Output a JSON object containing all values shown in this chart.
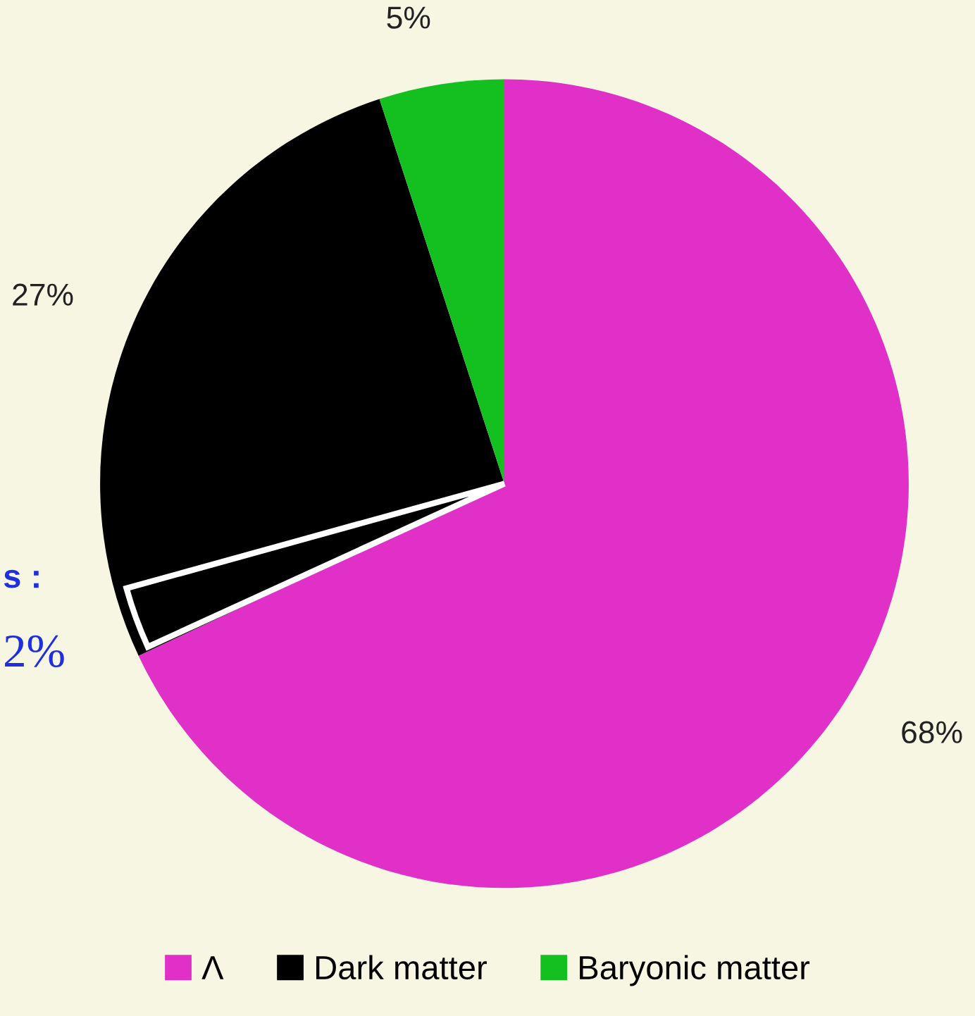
{
  "chart_data": {
    "type": "pie",
    "categories": [
      "Λ",
      "Dark matter",
      "Baryonic matter"
    ],
    "values": [
      68,
      27,
      5
    ],
    "colors": [
      "#e030c8",
      "#000000",
      "#14c020"
    ],
    "value_labels": [
      "68%",
      "27%",
      "5%"
    ],
    "annotations": [
      "s :",
      "2%"
    ],
    "legend": "bottom"
  }
}
